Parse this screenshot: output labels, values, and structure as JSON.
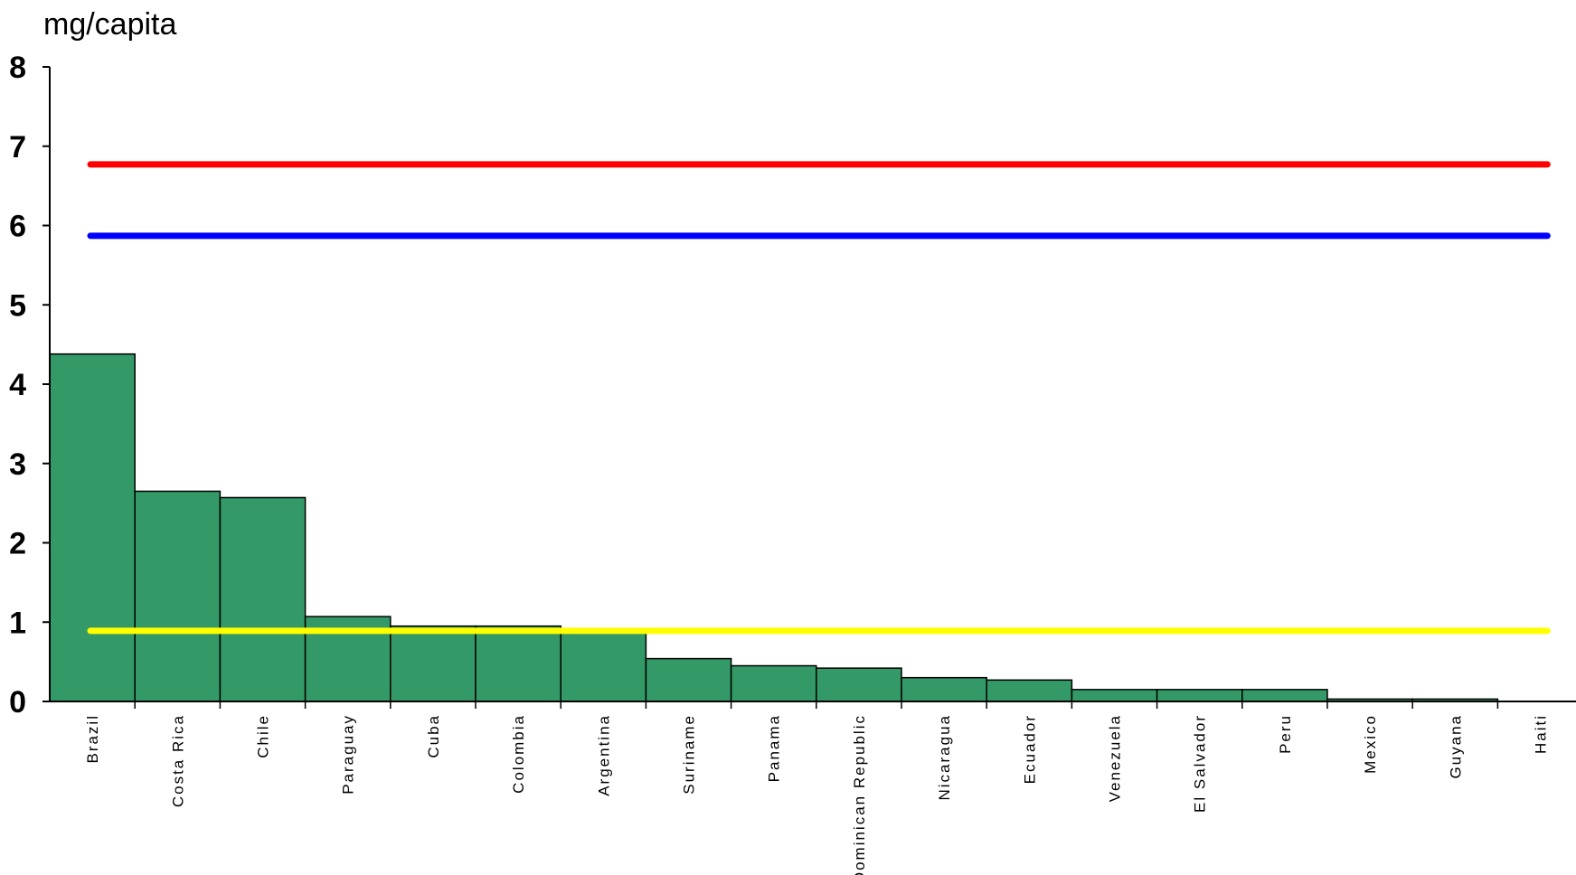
{
  "chart_data": {
    "type": "bar",
    "unit_label": "mg/capita",
    "categories": [
      "Brazil",
      "Costa Rica",
      "Chile",
      "Paraguay",
      "Cuba",
      "Colombia",
      "Argentina",
      "Suriname",
      "Panama",
      "Dominican Republic",
      "Nicaragua",
      "Ecuador",
      "Venezuela",
      "El Salvador",
      "Peru",
      "Mexico",
      "Guyana",
      "Haiti"
    ],
    "values": [
      4.38,
      2.65,
      2.57,
      1.07,
      0.95,
      0.95,
      0.9,
      0.54,
      0.45,
      0.42,
      0.3,
      0.27,
      0.15,
      0.15,
      0.15,
      0.03,
      0.03,
      0.0
    ],
    "ylim": [
      0,
      8
    ],
    "yticks": [
      "0",
      "1",
      "2",
      "3",
      "4",
      "5",
      "6",
      "7",
      "8"
    ],
    "grid": false,
    "bar_color": "#339966",
    "reference_lines": [
      {
        "value": 6.77,
        "color": "#ff0000"
      },
      {
        "value": 5.87,
        "color": "#0000ff"
      },
      {
        "value": 0.89,
        "color": "#ffff00"
      }
    ]
  }
}
